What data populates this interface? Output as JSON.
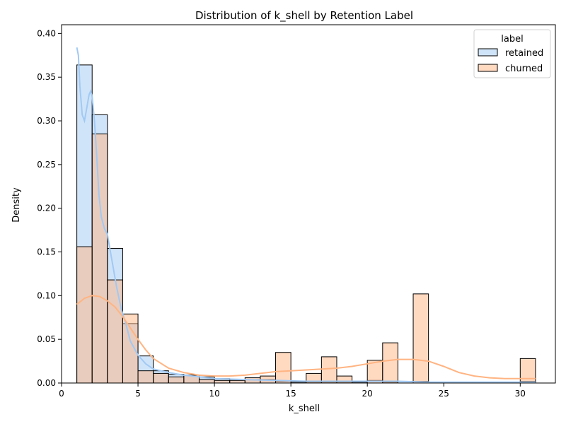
{
  "chart_data": {
    "type": "bar",
    "title": "Distribution of k_shell by Retention Label",
    "xlabel": "k_shell",
    "ylabel": "Density",
    "xlim": [
      0,
      32.3
    ],
    "ylim": [
      0,
      0.41
    ],
    "xticks": [
      "0",
      "5",
      "10",
      "15",
      "20",
      "25",
      "30"
    ],
    "yticks": [
      "0.00",
      "0.05",
      "0.10",
      "0.15",
      "0.20",
      "0.25",
      "0.30",
      "0.35",
      "0.40"
    ],
    "grid": false,
    "legend": {
      "title": "label",
      "placement": "top-right"
    },
    "bin_edges": [
      1,
      2,
      3,
      4,
      5,
      6,
      7,
      8,
      9,
      10,
      11,
      12,
      13,
      14,
      15,
      16,
      17,
      18,
      19,
      20,
      21,
      22,
      23,
      24,
      25,
      26,
      27,
      28,
      29,
      30,
      31
    ],
    "series": [
      {
        "name": "retained",
        "color": "#a1c9f4",
        "values": [
          0.364,
          0.307,
          0.154,
          0.068,
          0.031,
          0.014,
          0.01,
          0.009,
          0.007,
          0.005,
          0.004,
          0.004,
          0.004,
          0.002,
          0.001,
          0.001,
          0.001,
          0.001,
          0.001,
          0.003,
          0.001,
          0.002,
          0.002,
          0.001,
          0.0,
          0.0,
          0.001,
          0.001,
          0.001,
          0.002
        ],
        "kde_x": [
          1.0,
          1.1,
          1.2,
          1.35,
          1.5,
          1.65,
          1.8,
          1.9,
          2.0,
          2.15,
          2.3,
          2.45,
          2.6,
          2.8,
          3.0,
          3.3,
          3.6,
          3.9,
          4.2,
          4.5,
          5.0,
          5.5,
          6.0,
          7.0,
          8.0,
          9.0,
          10.0,
          12.0,
          14.0,
          16.0,
          18.0,
          20.0,
          22.0,
          24.0,
          26.0,
          28.0,
          31.0
        ],
        "kde_y": [
          0.384,
          0.375,
          0.34,
          0.307,
          0.3,
          0.315,
          0.33,
          0.334,
          0.328,
          0.3,
          0.26,
          0.215,
          0.19,
          0.177,
          0.17,
          0.14,
          0.11,
          0.085,
          0.068,
          0.048,
          0.032,
          0.022,
          0.016,
          0.012,
          0.009,
          0.007,
          0.005,
          0.004,
          0.003,
          0.002,
          0.002,
          0.002,
          0.002,
          0.001,
          0.001,
          0.001,
          0.001
        ]
      },
      {
        "name": "churned",
        "color": "#ffb482",
        "values": [
          0.156,
          0.285,
          0.118,
          0.079,
          0.014,
          0.011,
          0.007,
          0.009,
          0.004,
          0.003,
          0.003,
          0.006,
          0.008,
          0.035,
          0.0,
          0.011,
          0.03,
          0.008,
          0.0,
          0.026,
          0.046,
          0.0,
          0.102,
          0.0,
          0.0,
          0.0,
          0.0,
          0.0,
          0.0,
          0.028
        ],
        "kde_x": [
          1.0,
          1.5,
          2.0,
          2.5,
          3.0,
          3.5,
          4.0,
          4.5,
          5.0,
          5.5,
          6.0,
          7.0,
          8.0,
          9.0,
          10.0,
          11.0,
          12.0,
          13.0,
          14.0,
          15.0,
          16.0,
          17.0,
          18.0,
          19.0,
          20.0,
          21.0,
          22.0,
          23.0,
          24.0,
          25.0,
          26.0,
          27.0,
          28.0,
          29.0,
          30.0,
          31.0
        ],
        "kde_y": [
          0.09,
          0.097,
          0.1,
          0.099,
          0.094,
          0.087,
          0.076,
          0.063,
          0.05,
          0.038,
          0.028,
          0.017,
          0.012,
          0.009,
          0.008,
          0.008,
          0.009,
          0.011,
          0.013,
          0.014,
          0.015,
          0.016,
          0.017,
          0.019,
          0.022,
          0.025,
          0.027,
          0.027,
          0.025,
          0.019,
          0.012,
          0.008,
          0.006,
          0.005,
          0.005,
          0.005
        ]
      }
    ]
  }
}
